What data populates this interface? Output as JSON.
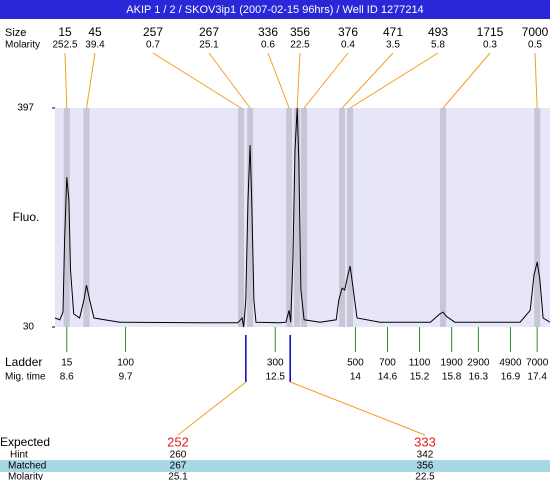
{
  "title": "AKIP 1 / 2 / SKOV3ip1 (2007-02-15 96hrs) / Well ID 1277214",
  "chart_data": {
    "type": "line",
    "y_label": "Fluo.",
    "ylim": [
      30,
      397
    ],
    "yticks": [
      30,
      397
    ],
    "xlim": [
      8.38,
      17.64
    ],
    "color": "#000000",
    "x": [
      8.38,
      8.47,
      8.53,
      8.56,
      8.6,
      8.64,
      8.67,
      8.73,
      8.84,
      8.92,
      8.97,
      9.03,
      9.11,
      9.59,
      11.09,
      11.8,
      11.88,
      11.91,
      11.95,
      11.99,
      12.03,
      12.06,
      12.1,
      12.14,
      12.59,
      12.7,
      12.76,
      12.79,
      12.83,
      12.87,
      12.91,
      12.94,
      12.98,
      13.04,
      13.34,
      13.64,
      13.69,
      13.75,
      13.8,
      13.86,
      13.9,
      13.95,
      14.03,
      14.46,
      15.4,
      15.58,
      15.64,
      15.7,
      15.86,
      17.08,
      17.27,
      17.34,
      17.4,
      17.45,
      17.51,
      17.64
    ],
    "values": [
      45,
      42,
      55,
      176,
      281,
      243,
      126,
      52,
      45,
      75,
      100,
      75,
      45,
      38,
      37,
      37,
      45,
      30,
      75,
      243,
      335,
      243,
      75,
      38,
      37,
      38,
      58,
      38,
      142,
      327,
      397,
      310,
      92,
      42,
      38,
      42,
      75,
      95,
      92,
      117,
      132,
      100,
      45,
      38,
      38,
      52,
      55,
      48,
      38,
      38,
      58,
      117,
      139,
      110,
      45,
      38
    ]
  },
  "peaks": {
    "labels": [
      "Size",
      "Molarity"
    ],
    "size": [
      15,
      45,
      257,
      267,
      336,
      356,
      376,
      471,
      493,
      1715,
      7000
    ],
    "molarity": [
      252.5,
      39.4,
      0.7,
      25.1,
      0.6,
      22.5,
      0.4,
      3.5,
      5.8,
      0.3,
      0.5
    ],
    "time": [
      8.6,
      8.97,
      11.86,
      12.03,
      12.76,
      12.91,
      13.04,
      13.75,
      13.9,
      15.64,
      17.4
    ]
  },
  "ladder": {
    "labels": [
      "Ladder",
      "Mig. time"
    ],
    "size": [
      15,
      100,
      300,
      500,
      700,
      1100,
      1900,
      2900,
      4900,
      7000
    ],
    "mig_time": [
      8.6,
      9.7,
      12.5,
      14,
      14.6,
      15.2,
      15.8,
      16.3,
      16.9,
      17.4
    ]
  },
  "expected": {
    "labels": [
      "Expected",
      "Hint",
      "Matched",
      "Molarity"
    ],
    "expected": [
      252,
      333
    ],
    "hint": [
      260,
      342
    ],
    "matched": [
      267,
      356
    ],
    "molarity": [
      25.1,
      22.5
    ],
    "time": [
      11.95,
      12.78
    ]
  }
}
